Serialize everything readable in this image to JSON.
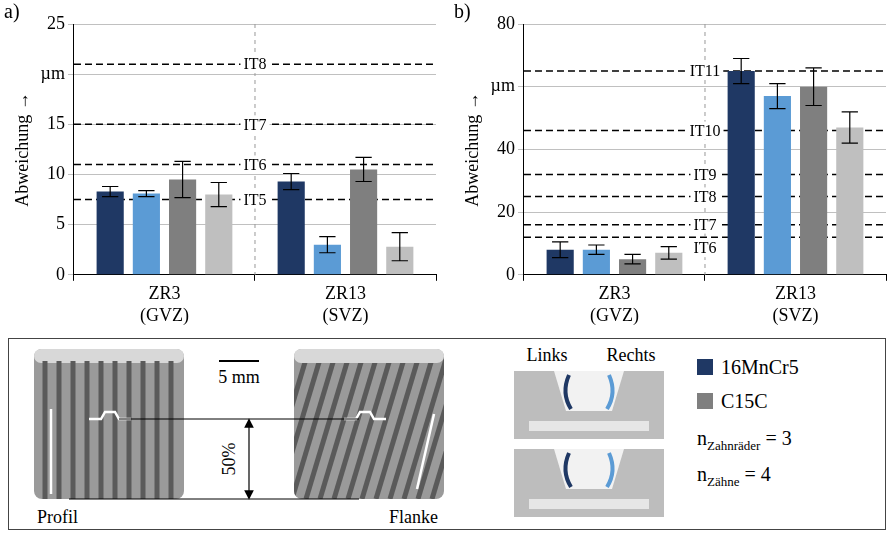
{
  "chart_data": [
    {
      "type": "bar",
      "panel": "a)",
      "y_label": "Abweichung →",
      "categories": [
        "ZR3 (GVZ)",
        "ZR13 (SVZ)"
      ],
      "series": [
        {
          "name": "16MnCr5",
          "side": "Links",
          "color": "#1f3864",
          "values": [
            8.3,
            9.3
          ],
          "errors": [
            0.5,
            0.8
          ]
        },
        {
          "name": "16MnCr5",
          "side": "Rechts",
          "color": "#5b9bd5",
          "values": [
            8.1,
            3.0
          ],
          "errors": [
            0.3,
            0.8
          ]
        },
        {
          "name": "C15C",
          "side": "Links",
          "color": "#7f7f7f",
          "values": [
            9.5,
            10.5
          ],
          "errors": [
            1.8,
            1.2
          ]
        },
        {
          "name": "C15C",
          "side": "Rechts",
          "color": "#bfbfbf",
          "values": [
            8.0,
            2.8
          ],
          "errors": [
            1.2,
            1.4
          ]
        }
      ],
      "ylim": [
        0,
        25
      ],
      "yticks": [
        0,
        5,
        10,
        15,
        {
          "value": 20,
          "label": "µm"
        },
        25
      ],
      "grid": true,
      "reference_lines": [
        {
          "label": "IT8",
          "value": 21
        },
        {
          "label": "IT7",
          "value": 15
        },
        {
          "label": "IT6",
          "value": 11
        },
        {
          "label": "IT5",
          "value": 7.5
        }
      ]
    },
    {
      "type": "bar",
      "panel": "b)",
      "y_label": "Abweichung →",
      "categories": [
        "ZR3 (GVZ)",
        "ZR13 (SVZ)"
      ],
      "series": [
        {
          "name": "16MnCr5",
          "side": "Links",
          "color": "#1f3864",
          "values": [
            8,
            65
          ],
          "errors": [
            2.5,
            4
          ]
        },
        {
          "name": "16MnCr5",
          "side": "Rechts",
          "color": "#5b9bd5",
          "values": [
            8,
            57
          ],
          "errors": [
            1.5,
            4
          ]
        },
        {
          "name": "C15C",
          "side": "Links",
          "color": "#7f7f7f",
          "values": [
            5,
            60
          ],
          "errors": [
            1.5,
            6
          ]
        },
        {
          "name": "C15C",
          "side": "Rechts",
          "color": "#bfbfbf",
          "values": [
            7,
            47
          ],
          "errors": [
            2,
            5
          ]
        }
      ],
      "ylim": [
        0,
        80
      ],
      "yticks": [
        0,
        20,
        40,
        {
          "value": 60,
          "label": "µm"
        },
        80
      ],
      "grid": true,
      "reference_lines": [
        {
          "label": "IT11",
          "value": 65
        },
        {
          "label": "IT10",
          "value": 46
        },
        {
          "label": "IT9",
          "value": 32
        },
        {
          "label": "IT8",
          "value": 25
        },
        {
          "label": "IT7",
          "value": 16
        },
        {
          "label": "IT6",
          "value": 12
        }
      ]
    }
  ],
  "legend_box": {
    "scale_bar": "5 mm",
    "height_mark": "50%",
    "profile": "Profil",
    "flank": "Flanke",
    "sides": [
      "Links",
      "Rechts"
    ],
    "counts": [
      {
        "symbol": "n",
        "subscript": "Zahnräder",
        "operator": "=",
        "value": 3
      },
      {
        "symbol": "n",
        "subscript": "Zähne",
        "operator": "=",
        "value": 4
      }
    ]
  }
}
